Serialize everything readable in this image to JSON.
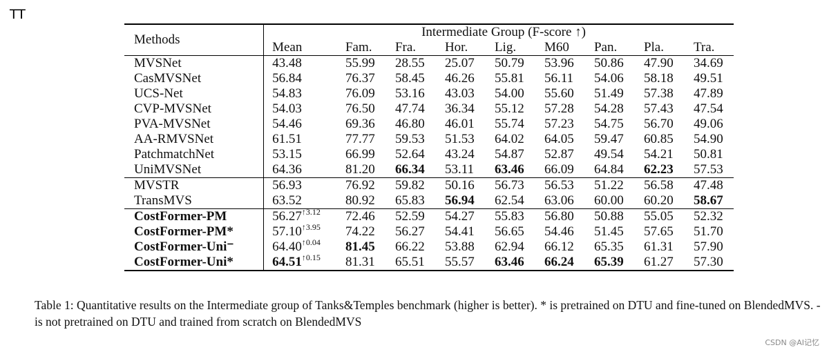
{
  "corner_label": "TT",
  "table": {
    "methods_header": "Methods",
    "group_header": "Intermediate Group (F-score ↑)",
    "columns": [
      "Mean",
      "Fam.",
      "Fra.",
      "Hor.",
      "Lig.",
      "M60",
      "Pan.",
      "Pla.",
      "Tra."
    ],
    "rows": [
      {
        "method": "MVSNet",
        "mean": "43.48",
        "mean_sup": "",
        "vals": [
          "55.99",
          "28.55",
          "25.07",
          "50.79",
          "53.96",
          "50.86",
          "47.90",
          "34.69"
        ]
      },
      {
        "method": "CasMVSNet",
        "mean": "56.84",
        "mean_sup": "",
        "vals": [
          "76.37",
          "58.45",
          "46.26",
          "55.81",
          "56.11",
          "54.06",
          "58.18",
          "49.51"
        ]
      },
      {
        "method": "UCS-Net",
        "mean": "54.83",
        "mean_sup": "",
        "vals": [
          "76.09",
          "53.16",
          "43.03",
          "54.00",
          "55.60",
          "51.49",
          "57.38",
          "47.89"
        ]
      },
      {
        "method": "CVP-MVSNet",
        "mean": "54.03",
        "mean_sup": "",
        "vals": [
          "76.50",
          "47.74",
          "36.34",
          "55.12",
          "57.28",
          "54.28",
          "57.43",
          "47.54"
        ]
      },
      {
        "method": "PVA-MVSNet",
        "mean": "54.46",
        "mean_sup": "",
        "vals": [
          "69.36",
          "46.80",
          "46.01",
          "55.74",
          "57.23",
          "54.75",
          "56.70",
          "49.06"
        ]
      },
      {
        "method": "AA-RMVSNet",
        "mean": "61.51",
        "mean_sup": "",
        "vals": [
          "77.77",
          "59.53",
          "51.53",
          "64.02",
          "64.05",
          "59.47",
          "60.85",
          "54.90"
        ]
      },
      {
        "method": "PatchmatchNet",
        "mean": "53.15",
        "mean_sup": "",
        "vals": [
          "66.99",
          "52.64",
          "43.24",
          "54.87",
          "52.87",
          "49.54",
          "54.21",
          "50.81"
        ]
      },
      {
        "method": "UniMVSNet",
        "mean": "64.36",
        "mean_sup": "",
        "vals": [
          "81.20",
          "66.34",
          "53.11",
          "63.46",
          "66.09",
          "64.84",
          "62.23",
          "57.53"
        ]
      },
      {
        "method": "MVSTR",
        "mean": "56.93",
        "mean_sup": "",
        "vals": [
          "76.92",
          "59.82",
          "50.16",
          "56.73",
          "56.53",
          "51.22",
          "56.58",
          "47.48"
        ]
      },
      {
        "method": "TransMVS",
        "mean": "63.52",
        "mean_sup": "",
        "vals": [
          "80.92",
          "65.83",
          "56.94",
          "62.54",
          "63.06",
          "60.00",
          "60.20",
          "58.67"
        ]
      },
      {
        "method": "CostFormer-PM",
        "mean": "56.27",
        "mean_sup": "↑3.12",
        "vals": [
          "72.46",
          "52.59",
          "54.27",
          "55.83",
          "56.80",
          "50.88",
          "55.05",
          "52.32"
        ]
      },
      {
        "method": "CostFormer-PM*",
        "mean": "57.10",
        "mean_sup": "↑3.95",
        "vals": [
          "74.22",
          "56.27",
          "54.41",
          "56.65",
          "54.46",
          "51.45",
          "57.65",
          "51.70"
        ]
      },
      {
        "method": "CostFormer-Uni⁻",
        "mean": "64.40",
        "mean_sup": "↑0.04",
        "vals": [
          "81.45",
          "66.22",
          "53.88",
          "62.94",
          "66.12",
          "65.35",
          "61.31",
          "57.90"
        ]
      },
      {
        "method": "CostFormer-Uni*",
        "mean": "64.51",
        "mean_sup": "↑0.15",
        "vals": [
          "81.31",
          "65.51",
          "55.57",
          "63.46",
          "66.24",
          "65.39",
          "61.27",
          "57.30"
        ]
      }
    ]
  },
  "caption": "Table 1: Quantitative results on the Intermediate group of Tanks&Temples benchmark (higher is better). * is pretrained on DTU and fine-tuned on BlendedMVS. - is not pretrained on DTU and trained from scratch on BlendedMVS",
  "watermark": "CSDN @AI记忆"
}
